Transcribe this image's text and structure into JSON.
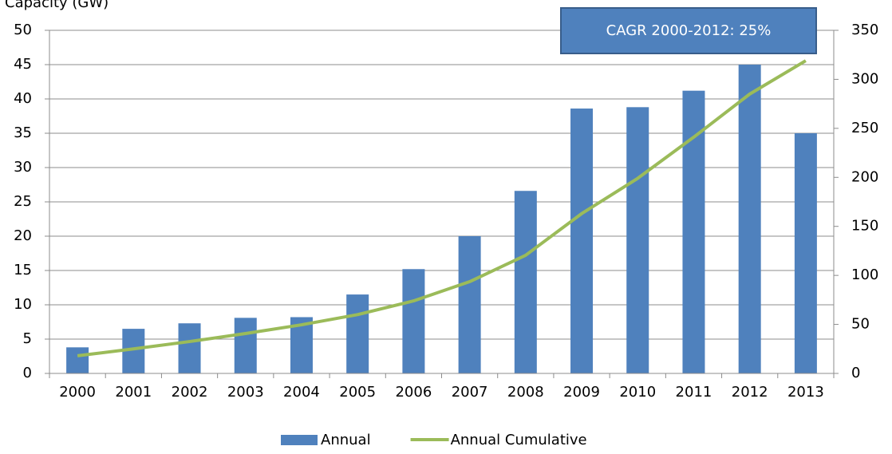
{
  "chart_data": {
    "type": "bar",
    "title": "Capacity (GW)",
    "categories": [
      "2000",
      "2001",
      "2002",
      "2003",
      "2004",
      "2005",
      "2006",
      "2007",
      "2008",
      "2009",
      "2010",
      "2011",
      "2012",
      "2013"
    ],
    "series": [
      {
        "name": "Annual",
        "type": "bar",
        "color": "#4f81bd",
        "values": [
          3.8,
          6.5,
          7.3,
          8.1,
          8.2,
          11.5,
          15.2,
          20,
          26.6,
          38.6,
          38.8,
          41.2,
          45,
          35
        ]
      },
      {
        "name": "Annual Cumulative",
        "type": "line",
        "axis": "y2",
        "color": "#9bbb59",
        "values": [
          18,
          25,
          32.5,
          40.7,
          49.6,
          60,
          74,
          93.6,
          120.5,
          163,
          199,
          241,
          285,
          319
        ]
      }
    ],
    "ylim": [
      0,
      50
    ],
    "yticks": [
      0,
      5,
      10,
      15,
      20,
      25,
      30,
      35,
      40,
      45,
      50
    ],
    "y2lim": [
      0,
      350
    ],
    "y2ticks": [
      0,
      50,
      100,
      150,
      200,
      250,
      300,
      350
    ],
    "annotation": "CAGR 2000-2012: 25%",
    "grid": true,
    "legend": "bottom"
  }
}
